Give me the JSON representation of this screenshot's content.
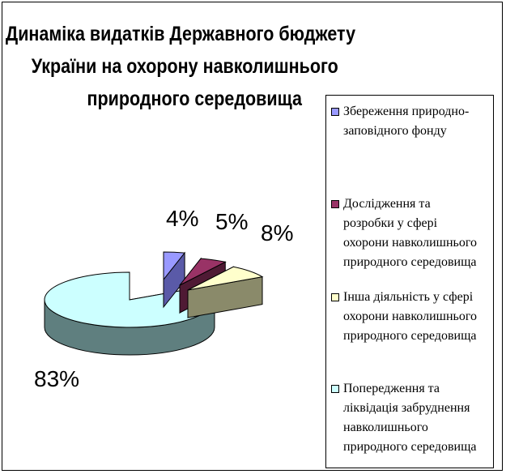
{
  "chart_data": {
    "type": "pie",
    "title": "Динаміка видатків Державного бюджету України на охорону навколишнього природного середовища",
    "title_lines": [
      "Динаміка видатків Державного бюджету",
      "України на охорону навколишнього",
      "природного середовища"
    ],
    "slices": [
      {
        "label_lines": [
          "Збереження природно-",
          "заповідного фонду"
        ],
        "value": 4,
        "value_label": "4%",
        "color": "#9999ff",
        "dark": "#5a5aa8"
      },
      {
        "label_lines": [
          "Дослідження та",
          "розробки у сфері",
          "охорони навколишнього",
          "природного середовища"
        ],
        "value": 5,
        "value_label": "5%",
        "color": "#993366",
        "dark": "#4f1a34"
      },
      {
        "label_lines": [
          "Інша діяльність у сфері",
          "охорони навколишнього",
          "природного середовища"
        ],
        "value": 8,
        "value_label": "8%",
        "color": "#ffffcc",
        "dark": "#8a8a6a"
      },
      {
        "label_lines": [
          "Попередження та",
          "ліквідація забруднення",
          "навколишнього",
          "природного середовища"
        ],
        "value": 83,
        "value_label": "83%",
        "color": "#ccffff",
        "dark": "#5f7f7f"
      }
    ],
    "legend_position": "right",
    "style": "3d-exploded"
  }
}
